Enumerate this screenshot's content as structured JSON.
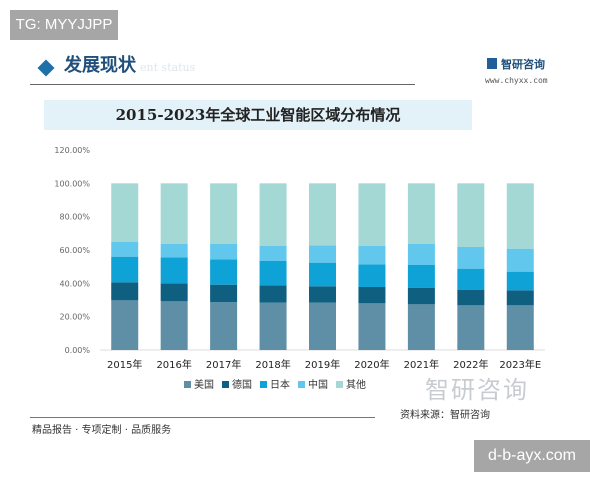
{
  "overlay_top": "TG: MYYJJPP",
  "overlay_bottom": "d-b-ayx.com",
  "header": {
    "section_title": "发展现状",
    "section_subtitle": "ent status",
    "brand": "智研咨询",
    "url": "www.chyxx.com"
  },
  "footer": {
    "watermark": "智研咨询",
    "source": "资料来源：智研咨询",
    "slogan": "精品报告 · 专项定制 · 品质服务"
  },
  "chart_data": {
    "type": "bar",
    "stacked": true,
    "title": "2015-2023年全球工业智能区域分布情况",
    "categories": [
      "2015年",
      "2016年",
      "2017年",
      "2018年",
      "2019年",
      "2020年",
      "2021年",
      "2022年",
      "2023年E"
    ],
    "ylim": [
      0,
      120
    ],
    "yticks": [
      "0.00%",
      "20.00%",
      "40.00%",
      "60.00%",
      "80.00%",
      "100.00%",
      "120.00%"
    ],
    "ytick_values": [
      0,
      20,
      40,
      60,
      80,
      100,
      120
    ],
    "grid": false,
    "legend_position": "bottom",
    "series": [
      {
        "name": "美国",
        "color": "#5f8fa6",
        "values": [
          29.8,
          29.2,
          28.8,
          28.4,
          28.4,
          28.0,
          27.4,
          26.8,
          26.8
        ]
      },
      {
        "name": "德国",
        "color": "#0e5f80",
        "values": [
          10.8,
          10.8,
          10.4,
          10.4,
          9.8,
          9.8,
          10.0,
          9.4,
          9.0
        ]
      },
      {
        "name": "日本",
        "color": "#0ea2d6",
        "values": [
          15.4,
          15.6,
          15.2,
          14.6,
          14.2,
          13.6,
          13.6,
          12.6,
          11.2
        ]
      },
      {
        "name": "中国",
        "color": "#62c7ec",
        "values": [
          9.0,
          8.2,
          9.2,
          9.2,
          10.4,
          11.2,
          12.8,
          13.0,
          13.8
        ]
      },
      {
        "name": "其他",
        "color": "#a4d8d4",
        "values": [
          35.0,
          36.2,
          36.4,
          37.4,
          37.2,
          37.4,
          36.2,
          38.2,
          39.2
        ]
      }
    ]
  }
}
